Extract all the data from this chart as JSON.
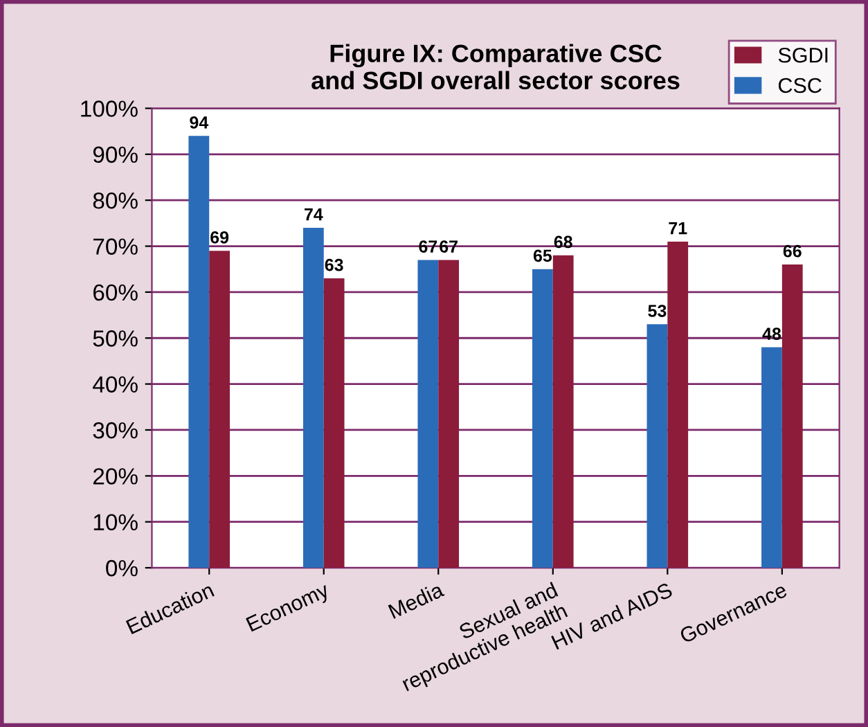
{
  "chart_data": {
    "type": "bar",
    "title": "Figure IX: Comparative CSC\nand SGDI overall sector scores",
    "categories": [
      "Education",
      "Economy",
      "Media",
      "Sexual and\nreproductive health",
      "HIV and AIDS",
      "Governance"
    ],
    "series": [
      {
        "name": "CSC",
        "color": "#2b6cb8",
        "values": [
          94,
          74,
          67,
          65,
          53,
          48
        ]
      },
      {
        "name": "SGDI",
        "color": "#8c1c3a",
        "values": [
          69,
          63,
          67,
          68,
          71,
          66
        ]
      }
    ],
    "ylim": [
      0,
      100
    ],
    "yticks": [
      {
        "value": 0,
        "label": "0%"
      },
      {
        "value": 10,
        "label": "10%"
      },
      {
        "value": 20,
        "label": "20%"
      },
      {
        "value": 30,
        "label": "30%"
      },
      {
        "value": 40,
        "label": "40%"
      },
      {
        "value": 50,
        "label": "50%"
      },
      {
        "value": 60,
        "label": "60%"
      },
      {
        "value": 70,
        "label": "70%"
      },
      {
        "value": 80,
        "label": "80%"
      },
      {
        "value": 90,
        "label": "90%"
      },
      {
        "value": 100,
        "label": "100%"
      }
    ],
    "grid": "y",
    "legend": "top right",
    "data_labels": true
  }
}
